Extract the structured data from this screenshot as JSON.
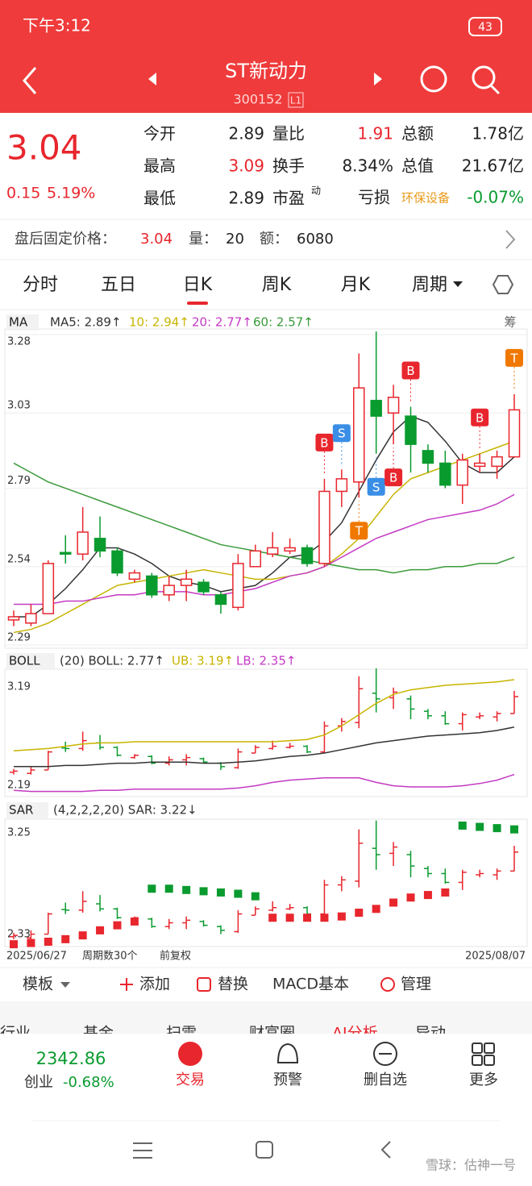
{
  "status": {
    "time": "下午3:12",
    "battery": "43"
  },
  "header": {
    "title": "ST新动力",
    "code": "300152",
    "badge": "L1"
  },
  "quote": {
    "price": "3.04",
    "change": "0.15",
    "change_pct": "5.19%",
    "col1": [
      [
        "今开",
        "2.89"
      ],
      [
        "最高",
        "3.09"
      ],
      [
        "最低",
        "2.89"
      ]
    ],
    "col2": [
      [
        "量比",
        "1.91"
      ],
      [
        "换手",
        "8.34%"
      ],
      [
        "市盈",
        "动"
      ]
    ],
    "col3": [
      [
        "总额",
        "1.78亿"
      ],
      [
        "总值",
        "21.67亿"
      ]
    ],
    "loss": "亏损",
    "sector": "环保设备",
    "sector_change": "-0.07%"
  },
  "after_hours": {
    "label": "盘后固定价格：",
    "price": "3.04",
    "vol_label": "量：",
    "vol": "20",
    "amt_label": "额：",
    "amt": "6080"
  },
  "tabs": [
    "分时",
    "五日",
    "日K",
    "周K",
    "月K",
    "周期"
  ],
  "kline": {
    "type": "candlestick",
    "legend": {
      "name": "MA",
      "ma5": "MA5: 2.89↑",
      "ma10": "10: 2.94↑",
      "ma20": "20: 2.77↑",
      "ma60": "60: 2.57↑",
      "chip": "筹"
    },
    "ylim": [
      2.29,
      3.28
    ],
    "yticks": [
      3.28,
      3.03,
      2.79,
      2.54,
      2.29
    ],
    "open": [
      2.37,
      2.36,
      2.39,
      2.585,
      2.58,
      2.63,
      2.59,
      2.5,
      2.51,
      2.45,
      2.48,
      2.49,
      2.45,
      2.41,
      2.54,
      2.58,
      2.59,
      2.6,
      2.55,
      2.78,
      2.81,
      3.07,
      3.03,
      3.02,
      2.91,
      2.87,
      2.8,
      2.86,
      2.86,
      2.89
    ],
    "close": [
      2.38,
      2.39,
      2.55,
      2.58,
      2.65,
      2.59,
      2.52,
      2.52,
      2.45,
      2.48,
      2.5,
      2.46,
      2.42,
      2.55,
      2.59,
      2.6,
      2.6,
      2.55,
      2.78,
      2.82,
      3.11,
      3.02,
      3.08,
      2.93,
      2.87,
      2.8,
      2.88,
      2.87,
      2.89,
      3.04
    ],
    "high": [
      2.4,
      2.42,
      2.56,
      2.64,
      2.73,
      2.7,
      2.6,
      2.53,
      2.52,
      2.51,
      2.53,
      2.5,
      2.46,
      2.58,
      2.61,
      2.65,
      2.63,
      2.61,
      2.82,
      2.85,
      3.22,
      3.29,
      3.12,
      3.05,
      2.93,
      2.91,
      2.9,
      2.9,
      2.91,
      3.09
    ],
    "low": [
      2.35,
      2.35,
      2.39,
      2.55,
      2.56,
      2.57,
      2.51,
      2.49,
      2.44,
      2.43,
      2.43,
      2.45,
      2.39,
      2.4,
      2.54,
      2.57,
      2.58,
      2.54,
      2.54,
      2.73,
      2.76,
      2.9,
      2.93,
      2.84,
      2.84,
      2.79,
      2.74,
      2.84,
      2.82,
      2.89
    ],
    "ma": [
      {
        "name": "MA5",
        "color": "#333333",
        "values": [
          2.38,
          2.38,
          2.42,
          2.47,
          2.53,
          2.6,
          2.6,
          2.58,
          2.55,
          2.51,
          2.49,
          2.48,
          2.46,
          2.47,
          2.48,
          2.52,
          2.57,
          2.58,
          2.62,
          2.68,
          2.78,
          2.88,
          2.97,
          3.02,
          3.0,
          2.94,
          2.87,
          2.84,
          2.84,
          2.89
        ]
      },
      {
        "name": "MA10",
        "color": "#c8b400",
        "values": [
          2.33,
          2.34,
          2.36,
          2.39,
          2.42,
          2.45,
          2.48,
          2.49,
          2.5,
          2.51,
          2.52,
          2.53,
          2.52,
          2.51,
          2.5,
          2.5,
          2.51,
          2.52,
          2.54,
          2.58,
          2.63,
          2.7,
          2.77,
          2.82,
          2.84,
          2.86,
          2.88,
          2.9,
          2.92,
          2.94
        ]
      },
      {
        "name": "MA20",
        "color": "#c43ac4",
        "values": [
          2.42,
          2.42,
          2.42,
          2.43,
          2.43,
          2.44,
          2.45,
          2.45,
          2.46,
          2.46,
          2.46,
          2.45,
          2.45,
          2.46,
          2.47,
          2.49,
          2.51,
          2.52,
          2.54,
          2.57,
          2.6,
          2.63,
          2.65,
          2.67,
          2.69,
          2.7,
          2.71,
          2.72,
          2.74,
          2.77
        ]
      },
      {
        "name": "MA60",
        "color": "#3a9a3a",
        "values": [
          2.87,
          2.84,
          2.81,
          2.79,
          2.77,
          2.75,
          2.73,
          2.71,
          2.69,
          2.67,
          2.65,
          2.63,
          2.61,
          2.6,
          2.59,
          2.58,
          2.57,
          2.56,
          2.55,
          2.54,
          2.53,
          2.53,
          2.52,
          2.53,
          2.53,
          2.54,
          2.54,
          2.55,
          2.55,
          2.57
        ]
      }
    ],
    "signals": [
      {
        "label": "B",
        "at": 18,
        "position": "above"
      },
      {
        "label": "S",
        "at": 19,
        "position": "above"
      },
      {
        "label": "T",
        "at": 20,
        "position": "below"
      },
      {
        "label": "S",
        "at": 21,
        "position": "below"
      },
      {
        "label": "B",
        "at": 22,
        "position": "below"
      },
      {
        "label": "B",
        "at": 23,
        "position": "above"
      },
      {
        "label": "B",
        "at": 27,
        "position": "above"
      },
      {
        "label": "T",
        "at": 29,
        "position": "above"
      }
    ]
  },
  "boll": {
    "legend": {
      "name": "BOLL",
      "mid": "(20) BOLL: 2.77↑",
      "ub": "UB: 3.19↑",
      "lb": "LB: 2.35↑"
    },
    "ylim": [
      2.19,
      3.19
    ],
    "yticks": [
      3.19,
      2.19
    ],
    "ub": [
      2.56,
      2.57,
      2.58,
      2.6,
      2.62,
      2.63,
      2.63,
      2.64,
      2.64,
      2.64,
      2.64,
      2.64,
      2.64,
      2.64,
      2.64,
      2.64,
      2.65,
      2.66,
      2.7,
      2.78,
      2.88,
      2.98,
      3.06,
      3.1,
      3.12,
      3.14,
      3.15,
      3.16,
      3.17,
      3.19
    ],
    "lb": [
      2.21,
      2.2,
      2.2,
      2.2,
      2.2,
      2.21,
      2.21,
      2.22,
      2.22,
      2.22,
      2.22,
      2.22,
      2.22,
      2.23,
      2.25,
      2.28,
      2.3,
      2.31,
      2.32,
      2.32,
      2.32,
      2.28,
      2.25,
      2.24,
      2.24,
      2.24,
      2.25,
      2.27,
      2.3,
      2.35
    ]
  },
  "sar": {
    "legend": {
      "name": "SAR",
      "text": "(4,2,2,2,20) SAR: 3.22↓"
    },
    "ylim": [
      2.33,
      3.25
    ],
    "yticks": [
      3.25,
      2.33
    ],
    "values": [
      2.31,
      2.32,
      2.33,
      2.35,
      2.38,
      2.42,
      2.46,
      2.49,
      2.75,
      2.75,
      2.74,
      2.73,
      2.72,
      2.71,
      2.69,
      2.52,
      2.52,
      2.52,
      2.52,
      2.53,
      2.56,
      2.59,
      2.64,
      2.68,
      2.7,
      2.72,
      3.25,
      3.24,
      3.23,
      3.22
    ]
  },
  "xaxis": {
    "start": "2025/06/27",
    "count": "周期数30个",
    "adjust": "前复权",
    "end": "2025/08/07"
  },
  "toolbar": [
    "模板",
    "添加",
    "替换",
    "MACD基本",
    "管理"
  ],
  "strip": [
    "行业",
    "基金",
    "扫雷",
    "财富圈",
    "AI分析",
    "异动"
  ],
  "nav": {
    "index": "2342.86",
    "index_name": "创业",
    "index_change": "-0.68%",
    "items": [
      "交易",
      "预警",
      "删自选",
      "更多"
    ]
  },
  "watermark": "雪球：估神一号"
}
